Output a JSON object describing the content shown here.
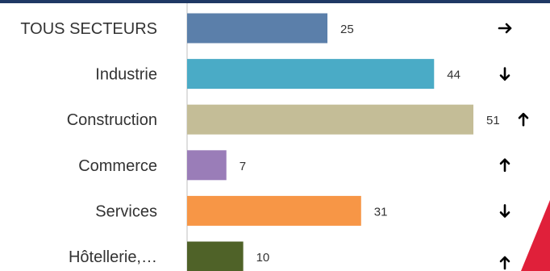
{
  "chart_data": {
    "type": "bar",
    "orientation": "horizontal",
    "categories": [
      "TOUS SECTEURS",
      "Industrie",
      "Construction",
      "Commerce",
      "Services",
      "Hôtellerie,…"
    ],
    "values": [
      25,
      44,
      51,
      7,
      31,
      10
    ],
    "trends": [
      "right",
      "down",
      "up",
      "up",
      "down",
      "up"
    ],
    "colors": [
      "#5b7faa",
      "#4aabc6",
      "#c4bd97",
      "#9a7db8",
      "#f79646",
      "#4f6228"
    ],
    "xlim": [
      0,
      51
    ],
    "grid": false,
    "title": "",
    "xlabel": "",
    "ylabel": ""
  },
  "icons": {
    "right": "arrow-right-icon",
    "down": "arrow-down-icon",
    "up": "arrow-up-icon"
  },
  "decoration": {
    "accent_color": "#e0203a",
    "topbar_color": "#1f3864"
  }
}
